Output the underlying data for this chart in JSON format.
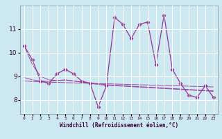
{
  "x": [
    0,
    1,
    2,
    3,
    4,
    5,
    6,
    7,
    8,
    9,
    10,
    11,
    12,
    13,
    14,
    15,
    16,
    17,
    18,
    19,
    20,
    21,
    22,
    23
  ],
  "y_main": [
    10.3,
    9.7,
    8.8,
    8.7,
    9.1,
    9.3,
    9.1,
    8.8,
    8.7,
    7.7,
    8.6,
    11.5,
    11.2,
    10.6,
    11.2,
    11.3,
    9.5,
    11.6,
    9.3,
    8.7,
    8.2,
    8.1,
    8.6,
    8.1
  ],
  "y_trend1": [
    10.3,
    9.5,
    9.0,
    8.85,
    8.82,
    8.85,
    8.8,
    8.75,
    8.7,
    8.65,
    8.62,
    8.6,
    8.58,
    8.56,
    8.54,
    8.52,
    8.5,
    8.48,
    8.46,
    8.44,
    8.42,
    8.4,
    8.38,
    8.36
  ],
  "y_trend2": [
    8.95,
    8.85,
    8.8,
    8.78,
    8.82,
    8.84,
    8.8,
    8.75,
    8.72,
    8.68,
    8.64,
    8.62,
    8.6,
    8.58,
    8.56,
    8.54,
    8.52,
    8.5,
    8.48,
    8.46,
    8.44,
    8.42,
    8.4,
    8.38
  ],
  "y_trend3": [
    8.8,
    8.78,
    8.76,
    8.75,
    8.74,
    8.73,
    8.72,
    8.71,
    8.7,
    8.69,
    8.68,
    8.67,
    8.66,
    8.65,
    8.64,
    8.63,
    8.62,
    8.61,
    8.6,
    8.59,
    8.58,
    8.57,
    8.56,
    8.55
  ],
  "line_color": "#993399",
  "bg_color": "#cce8f0",
  "grid_color": "#ffffff",
  "ylabel_values": [
    8,
    9,
    10,
    11
  ],
  "ylim": [
    7.4,
    12.0
  ],
  "xlim": [
    -0.5,
    23.5
  ],
  "xlabel": "Windchill (Refroidissement éolien,°C)",
  "xlabel_fontsize": 5.5,
  "ytick_fontsize": 6.5,
  "xtick_fontsize": 4.2
}
